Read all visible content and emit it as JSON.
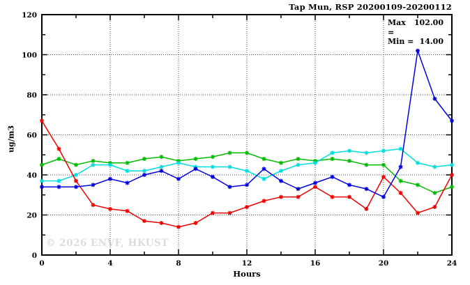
{
  "watermark": "© 2026 ENVF, HKUST",
  "annotation": {
    "max_label": "Max =",
    "max_value": "102.00",
    "min_label": "Min =",
    "min_value": "14.00"
  },
  "chart_data": {
    "type": "line",
    "title": "Tap Mun, RSP 20200109-20200112",
    "xlabel": "Hours",
    "ylabel": "ug/m3",
    "xlim": [
      0,
      24
    ],
    "ylim": [
      0,
      120
    ],
    "grid": true,
    "legend": "none",
    "x_major_ticks": [
      0,
      4,
      8,
      12,
      16,
      20,
      24
    ],
    "x_tick_labels": [
      "0",
      "4",
      "8",
      "12",
      "16",
      "20",
      "24"
    ],
    "x_minor_step": 2,
    "y_major_ticks": [
      0,
      20,
      40,
      60,
      80,
      100,
      120
    ],
    "y_tick_labels": [
      "0",
      "20",
      "40",
      "60",
      "80",
      "100",
      "120"
    ],
    "y_minor_step": 10,
    "x": [
      0,
      1,
      2,
      3,
      4,
      5,
      6,
      7,
      8,
      9,
      10,
      11,
      12,
      13,
      14,
      15,
      16,
      17,
      18,
      19,
      20,
      21,
      22,
      23,
      24
    ],
    "series": [
      {
        "name": "green-line",
        "color": "#00bb00",
        "values": [
          45,
          48,
          45,
          47,
          46,
          46,
          48,
          49,
          47,
          48,
          49,
          51,
          51,
          48,
          46,
          48,
          47,
          48,
          47,
          45,
          45,
          37,
          35,
          31,
          34
        ]
      },
      {
        "name": "cyan-line",
        "color": "#00dddd",
        "values": [
          37,
          37,
          40,
          45,
          45,
          42,
          42,
          44,
          46,
          44,
          44,
          44,
          42,
          38,
          42,
          45,
          46,
          51,
          52,
          51,
          52,
          53,
          46,
          44,
          45
        ]
      },
      {
        "name": "red-line",
        "color": "#ee0000",
        "values": [
          67,
          53,
          37,
          25,
          23,
          22,
          17,
          16,
          14,
          16,
          21,
          21,
          24,
          27,
          29,
          29,
          34,
          29,
          29,
          23,
          39,
          31,
          21,
          24,
          40
        ]
      },
      {
        "name": "blue-line",
        "color": "#0000dd",
        "values": [
          34,
          34,
          34,
          35,
          38,
          36,
          40,
          42,
          38,
          43,
          39,
          34,
          35,
          43,
          37,
          33,
          36,
          39,
          35,
          33,
          29,
          44,
          102,
          78,
          67
        ]
      }
    ],
    "annotations": {
      "max": 102.0,
      "min": 14.0
    }
  }
}
